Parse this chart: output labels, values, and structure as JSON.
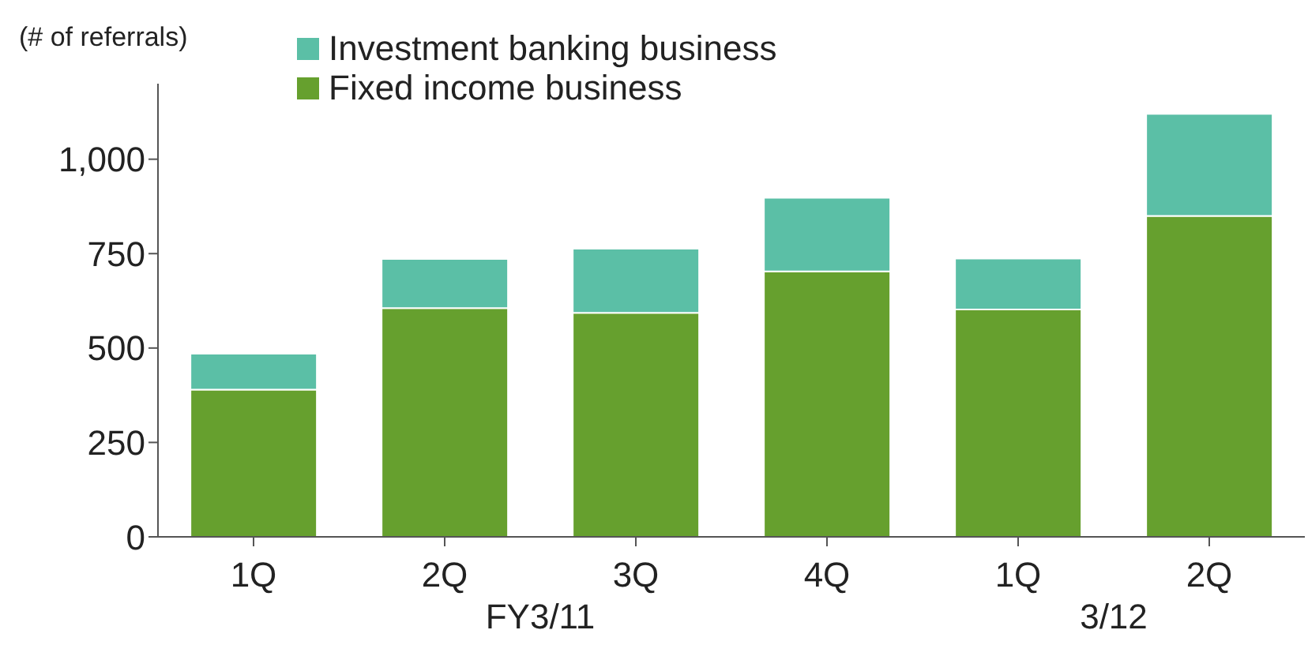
{
  "chart_data": {
    "type": "bar",
    "stacked": true,
    "ylabel": "(# of referrals)",
    "categories": [
      "1Q",
      "2Q",
      "3Q",
      "4Q",
      "1Q",
      "2Q"
    ],
    "series": [
      {
        "name": "Fixed income business",
        "color": "#66a02e",
        "values": [
          390,
          606,
          593,
          703,
          602,
          850
        ]
      },
      {
        "name": "Investment banking business",
        "color": "#5bbfa6",
        "values": [
          95,
          130,
          170,
          195,
          135,
          270
        ]
      }
    ],
    "ylim": [
      0,
      1200
    ],
    "yticks": [
      0,
      250,
      500,
      750,
      {
        "value": 1000,
        "label": "1,000"
      }
    ],
    "legend": "top left",
    "annotations": [
      "FY3/11",
      "3/12"
    ]
  }
}
